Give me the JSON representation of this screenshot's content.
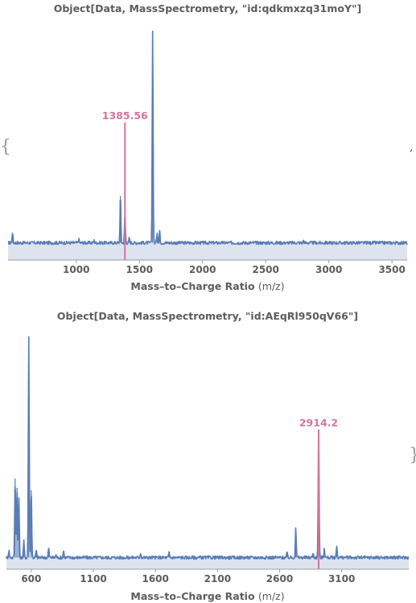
{
  "colors": {
    "spectrum": "#5a7db5",
    "fill": "#dde4f0",
    "axis": "#9d9d9d",
    "highlight": "#d4749a",
    "text": "#5c5c5c",
    "brace": "#9a9a9a"
  },
  "glyphs": {
    "open_brace": "{",
    "close_brace": "}",
    "separator": ","
  },
  "chart_data": [
    {
      "type": "line",
      "title": "Object[Data, MassSpectrometry, \"id:qdkmxzq31moY\"]",
      "xlabel": "Mass–to–Charge Ratio",
      "xlabel_unit": "(m/z)",
      "xlim": [
        460,
        3620
      ],
      "xticks": [
        1000,
        1500,
        2000,
        2500,
        3000,
        3500
      ],
      "xtick_labels": [
        "1000",
        "1500",
        "2000",
        "2500",
        "3000",
        "3500"
      ],
      "ylim": [
        0,
        100
      ],
      "baseline": 7.5,
      "grid": false,
      "fill_under": true,
      "peaks": [
        {
          "x": 495,
          "y": 12
        },
        {
          "x": 1020,
          "y": 9
        },
        {
          "x": 1140,
          "y": 8.5
        },
        {
          "x": 1350,
          "y": 28
        },
        {
          "x": 1385.56,
          "y": 20
        },
        {
          "x": 1420,
          "y": 9.5
        },
        {
          "x": 1605,
          "y": 100
        },
        {
          "x": 1640,
          "y": 12
        },
        {
          "x": 1660,
          "y": 13
        },
        {
          "x": 2800,
          "y": 8.5
        }
      ],
      "highlight": {
        "x": 1385.56,
        "label": "1385.56",
        "y_top": 60
      }
    },
    {
      "type": "line",
      "title": "Object[Data, MassSpectrometry, \"id:AEqRl950qV66\"]",
      "xlabel": "Mass–to–Charge Ratio",
      "xlabel_unit": "(m/z)",
      "xlim": [
        400,
        3640
      ],
      "xticks": [
        600,
        1100,
        1600,
        2100,
        2600,
        3100
      ],
      "xtick_labels": [
        "600",
        "1100",
        "1600",
        "2100",
        "2600",
        "3100"
      ],
      "ylim": [
        0,
        100
      ],
      "baseline": 5,
      "grid": false,
      "fill_under": true,
      "peaks": [
        {
          "x": 420,
          "y": 8
        },
        {
          "x": 470,
          "y": 39
        },
        {
          "x": 485,
          "y": 35
        },
        {
          "x": 500,
          "y": 31
        },
        {
          "x": 540,
          "y": 12
        },
        {
          "x": 580,
          "y": 100
        },
        {
          "x": 600,
          "y": 34
        },
        {
          "x": 640,
          "y": 8
        },
        {
          "x": 740,
          "y": 9
        },
        {
          "x": 800,
          "y": 6
        },
        {
          "x": 860,
          "y": 8
        },
        {
          "x": 1480,
          "y": 7
        },
        {
          "x": 1710,
          "y": 7
        },
        {
          "x": 2660,
          "y": 7
        },
        {
          "x": 2730,
          "y": 18
        },
        {
          "x": 2870,
          "y": 7
        },
        {
          "x": 2914.2,
          "y": 60
        },
        {
          "x": 2960,
          "y": 9
        },
        {
          "x": 3060,
          "y": 10
        }
      ],
      "highlight": {
        "x": 2914.2,
        "label": "2914.2",
        "y_top": 60
      }
    }
  ]
}
